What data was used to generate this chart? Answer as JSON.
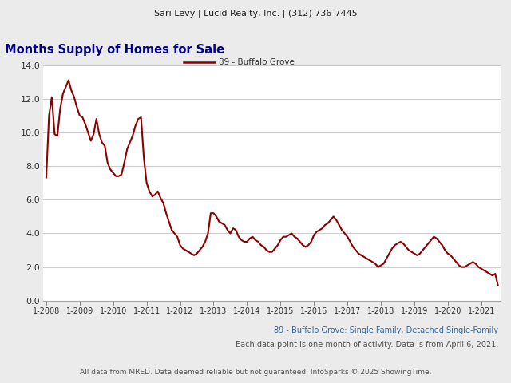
{
  "header": "Sari Levy | Lucid Realty, Inc. | (312) 736-7445",
  "title": "Months Supply of Homes for Sale",
  "legend_label": "89 - Buffalo Grove",
  "subtitle1": "89 - Buffalo Grove: Single Family, Detached Single-Family",
  "subtitle2": "Each data point is one month of activity. Data is from April 6, 2021.",
  "footer": "All data from MRED. Data deemed reliable but not guaranteed. InfoSparks © 2025 ShowingTime.",
  "line_color": "#8B0000",
  "background_color": "#ebebeb",
  "plot_bg_color": "#ffffff",
  "ylim": [
    0.0,
    14.0
  ],
  "yticks": [
    0.0,
    2.0,
    4.0,
    6.0,
    8.0,
    10.0,
    12.0,
    14.0
  ],
  "x_labels": [
    "1-2008",
    "1-2009",
    "1-2010",
    "1-2011",
    "1-2012",
    "1-2013",
    "1-2014",
    "1-2015",
    "1-2016",
    "1-2017",
    "1-2018",
    "1-2019",
    "1-2020",
    "1-2021"
  ],
  "values": [
    7.3,
    11.0,
    12.1,
    9.9,
    9.8,
    11.4,
    12.3,
    12.7,
    13.1,
    12.5,
    12.1,
    11.5,
    11.0,
    10.9,
    10.5,
    10.0,
    9.5,
    9.9,
    10.8,
    9.9,
    9.4,
    9.2,
    8.2,
    7.8,
    7.6,
    7.4,
    7.4,
    7.5,
    8.2,
    9.0,
    9.4,
    9.8,
    10.4,
    10.8,
    10.9,
    8.5,
    7.0,
    6.5,
    6.2,
    6.3,
    6.5,
    6.1,
    5.8,
    5.2,
    4.7,
    4.2,
    4.0,
    3.8,
    3.3,
    3.1,
    3.0,
    2.9,
    2.8,
    2.7,
    2.8,
    3.0,
    3.2,
    3.5,
    4.0,
    5.2,
    5.2,
    5.0,
    4.7,
    4.6,
    4.5,
    4.2,
    4.0,
    4.3,
    4.2,
    3.8,
    3.6,
    3.5,
    3.5,
    3.7,
    3.8,
    3.6,
    3.5,
    3.3,
    3.2,
    3.0,
    2.9,
    2.9,
    3.1,
    3.3,
    3.6,
    3.8,
    3.8,
    3.9,
    4.0,
    3.8,
    3.7,
    3.5,
    3.3,
    3.2,
    3.3,
    3.5,
    3.9,
    4.1,
    4.2,
    4.3,
    4.5,
    4.6,
    4.8,
    5.0,
    4.8,
    4.5,
    4.2,
    4.0,
    3.8,
    3.5,
    3.2,
    3.0,
    2.8,
    2.7,
    2.6,
    2.5,
    2.4,
    2.3,
    2.2,
    2.0,
    2.1,
    2.2,
    2.5,
    2.8,
    3.1,
    3.3,
    3.4,
    3.5,
    3.4,
    3.2,
    3.0,
    2.9,
    2.8,
    2.7,
    2.8,
    3.0,
    3.2,
    3.4,
    3.6,
    3.8,
    3.7,
    3.5,
    3.3,
    3.0,
    2.8,
    2.7,
    2.5,
    2.3,
    2.1,
    2.0,
    2.0,
    2.1,
    2.2,
    2.3,
    2.2,
    2.0,
    1.9,
    1.8,
    1.7,
    1.6,
    1.5,
    1.6,
    0.9
  ]
}
